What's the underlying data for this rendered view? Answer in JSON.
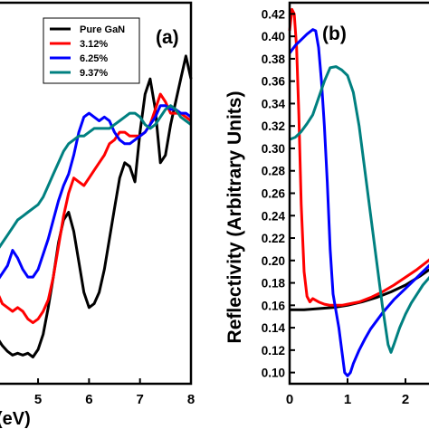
{
  "chart_data": [
    {
      "panel_label": "(a)",
      "type": "line",
      "xlabel": "(eV)",
      "xlim": [
        4.2,
        8.0
      ],
      "ylim": [
        0,
        1
      ],
      "x_ticks": [
        5,
        6,
        7,
        8
      ],
      "x_tick_labels": [
        "5",
        "6",
        "7",
        "8"
      ],
      "legend": {
        "position": "top-left",
        "entries": [
          "Pure GaN",
          "3.12%",
          "6.25%",
          "9.37%"
        ]
      },
      "series": [
        {
          "name": "Pure GaN",
          "color": "#000000",
          "x": [
            4.2,
            4.3,
            4.4,
            4.5,
            4.6,
            4.7,
            4.8,
            4.9,
            5.0,
            5.1,
            5.2,
            5.3,
            5.4,
            5.5,
            5.6,
            5.7,
            5.8,
            5.9,
            6.0,
            6.1,
            6.2,
            6.3,
            6.4,
            6.5,
            6.6,
            6.7,
            6.8,
            6.9,
            7.0,
            7.1,
            7.2,
            7.3,
            7.4,
            7.5,
            7.6,
            7.7,
            7.8,
            7.9,
            8.0
          ],
          "y": [
            0.12,
            0.1,
            0.085,
            0.075,
            0.08,
            0.075,
            0.08,
            0.07,
            0.09,
            0.13,
            0.2,
            0.28,
            0.37,
            0.43,
            0.45,
            0.4,
            0.32,
            0.24,
            0.2,
            0.21,
            0.24,
            0.3,
            0.38,
            0.46,
            0.54,
            0.58,
            0.57,
            0.53,
            0.66,
            0.76,
            0.8,
            0.72,
            0.58,
            0.6,
            0.68,
            0.74,
            0.8,
            0.86,
            0.8
          ]
        },
        {
          "name": "3.12%",
          "color": "#ff0000",
          "x": [
            4.2,
            4.3,
            4.4,
            4.5,
            4.6,
            4.7,
            4.8,
            4.9,
            5.0,
            5.1,
            5.2,
            5.3,
            5.4,
            5.5,
            5.6,
            5.7,
            5.8,
            5.9,
            6.0,
            6.1,
            6.2,
            6.3,
            6.4,
            6.5,
            6.6,
            6.7,
            6.8,
            6.9,
            7.0,
            7.1,
            7.2,
            7.3,
            7.4,
            7.5,
            7.6,
            7.7,
            7.8,
            7.9,
            8.0
          ],
          "y": [
            0.24,
            0.21,
            0.2,
            0.19,
            0.2,
            0.19,
            0.17,
            0.16,
            0.17,
            0.19,
            0.22,
            0.28,
            0.36,
            0.44,
            0.5,
            0.54,
            0.53,
            0.52,
            0.54,
            0.56,
            0.58,
            0.6,
            0.63,
            0.64,
            0.66,
            0.66,
            0.65,
            0.65,
            0.65,
            0.66,
            0.68,
            0.72,
            0.76,
            0.74,
            0.71,
            0.71,
            0.71,
            0.7,
            0.69
          ]
        },
        {
          "name": "6.25%",
          "color": "#0000ff",
          "x": [
            4.2,
            4.3,
            4.4,
            4.5,
            4.6,
            4.7,
            4.8,
            4.9,
            5.0,
            5.1,
            5.2,
            5.3,
            5.4,
            5.5,
            5.6,
            5.7,
            5.8,
            5.9,
            6.0,
            6.1,
            6.2,
            6.3,
            6.4,
            6.5,
            6.6,
            6.7,
            6.8,
            6.9,
            7.0,
            7.1,
            7.2,
            7.3,
            7.4,
            7.5,
            7.6,
            7.7,
            7.8,
            7.9,
            8.0
          ],
          "y": [
            0.27,
            0.29,
            0.31,
            0.35,
            0.33,
            0.3,
            0.28,
            0.28,
            0.3,
            0.34,
            0.38,
            0.43,
            0.48,
            0.52,
            0.55,
            0.6,
            0.66,
            0.7,
            0.71,
            0.7,
            0.69,
            0.7,
            0.69,
            0.66,
            0.64,
            0.63,
            0.63,
            0.64,
            0.65,
            0.66,
            0.68,
            0.7,
            0.73,
            0.73,
            0.72,
            0.72,
            0.71,
            0.71,
            0.7
          ]
        },
        {
          "name": "9.37%",
          "color": "#008080",
          "x": [
            4.2,
            4.3,
            4.4,
            4.5,
            4.6,
            4.7,
            4.8,
            4.9,
            5.0,
            5.1,
            5.2,
            5.3,
            5.4,
            5.5,
            5.6,
            5.7,
            5.8,
            5.9,
            6.0,
            6.1,
            6.2,
            6.3,
            6.4,
            6.5,
            6.6,
            6.7,
            6.8,
            6.9,
            7.0,
            7.1,
            7.2,
            7.3,
            7.4,
            7.5,
            7.6,
            7.7,
            7.8,
            7.9,
            8.0
          ],
          "y": [
            0.35,
            0.37,
            0.39,
            0.41,
            0.43,
            0.44,
            0.45,
            0.46,
            0.47,
            0.49,
            0.52,
            0.55,
            0.58,
            0.61,
            0.63,
            0.64,
            0.65,
            0.65,
            0.66,
            0.67,
            0.67,
            0.67,
            0.67,
            0.68,
            0.69,
            0.7,
            0.71,
            0.71,
            0.7,
            0.68,
            0.67,
            0.68,
            0.7,
            0.72,
            0.73,
            0.72,
            0.7,
            0.69,
            0.68
          ]
        }
      ]
    },
    {
      "panel_label": "(b)",
      "type": "line",
      "ylabel": "Reflectivity (Arbitrary Units)",
      "xlim": [
        0,
        2.5
      ],
      "ylim": [
        0.09,
        0.43
      ],
      "x_ticks": [
        0,
        1,
        2
      ],
      "x_tick_labels": [
        "0",
        "1",
        "2"
      ],
      "y_ticks": [
        0.1,
        0.12,
        0.14,
        0.16,
        0.18,
        0.2,
        0.22,
        0.24,
        0.26,
        0.28,
        0.3,
        0.32,
        0.34,
        0.36,
        0.38,
        0.4,
        0.42
      ],
      "y_tick_labels": [
        "0.10",
        "0.12",
        "0.14",
        "0.16",
        "0.18",
        "0.20",
        "0.22",
        "0.24",
        "0.26",
        "0.28",
        "0.30",
        "0.32",
        "0.34",
        "0.36",
        "0.38",
        "0.40",
        "0.42"
      ],
      "series": [
        {
          "name": "Pure GaN",
          "color": "#000000",
          "x": [
            0,
            0.25,
            0.5,
            0.75,
            1.0,
            1.25,
            1.5,
            1.75,
            2.0,
            2.25,
            2.5
          ],
          "y": [
            0.156,
            0.156,
            0.157,
            0.158,
            0.16,
            0.163,
            0.167,
            0.172,
            0.178,
            0.186,
            0.195
          ]
        },
        {
          "name": "3.12%",
          "color": "#ff0000",
          "x": [
            0,
            0.04,
            0.08,
            0.12,
            0.16,
            0.2,
            0.25,
            0.3,
            0.35,
            0.4,
            0.5,
            0.6,
            0.7,
            0.8,
            0.9,
            1.0,
            1.2,
            1.4,
            1.6,
            1.8,
            2.0,
            2.2,
            2.4,
            2.5
          ],
          "y": [
            0.405,
            0.424,
            0.42,
            0.39,
            0.33,
            0.25,
            0.19,
            0.168,
            0.163,
            0.166,
            0.163,
            0.161,
            0.16,
            0.16,
            0.16,
            0.161,
            0.163,
            0.167,
            0.172,
            0.178,
            0.185,
            0.192,
            0.2,
            0.205
          ]
        },
        {
          "name": "6.25%",
          "color": "#0000ff",
          "x": [
            0,
            0.1,
            0.2,
            0.3,
            0.4,
            0.45,
            0.5,
            0.55,
            0.6,
            0.65,
            0.7,
            0.75,
            0.8,
            0.85,
            0.9,
            0.95,
            1.0,
            1.05,
            1.1,
            1.2,
            1.3,
            1.4,
            1.5,
            1.6,
            1.8,
            2.0,
            2.2,
            2.4,
            2.5
          ],
          "y": [
            0.385,
            0.392,
            0.397,
            0.402,
            0.406,
            0.405,
            0.39,
            0.36,
            0.32,
            0.27,
            0.21,
            0.17,
            0.155,
            0.14,
            0.12,
            0.1,
            0.097,
            0.1,
            0.108,
            0.12,
            0.13,
            0.139,
            0.146,
            0.153,
            0.165,
            0.175,
            0.185,
            0.195,
            0.2
          ]
        },
        {
          "name": "9.37%",
          "color": "#008080",
          "x": [
            0,
            0.1,
            0.2,
            0.3,
            0.4,
            0.5,
            0.6,
            0.7,
            0.8,
            0.9,
            1.0,
            1.1,
            1.2,
            1.3,
            1.4,
            1.5,
            1.6,
            1.7,
            1.75,
            1.8,
            1.9,
            2.0,
            2.1,
            2.2,
            2.3,
            2.4,
            2.5
          ],
          "y": [
            0.308,
            0.31,
            0.315,
            0.322,
            0.33,
            0.345,
            0.36,
            0.372,
            0.373,
            0.37,
            0.365,
            0.35,
            0.32,
            0.28,
            0.24,
            0.2,
            0.16,
            0.125,
            0.118,
            0.125,
            0.14,
            0.152,
            0.162,
            0.17,
            0.178,
            0.184,
            0.19
          ]
        }
      ]
    }
  ]
}
